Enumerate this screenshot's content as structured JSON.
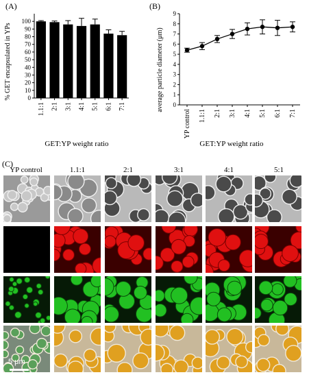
{
  "panels": {
    "a_label": "(A)",
    "b_label": "(B)",
    "c_label": "(C)"
  },
  "chart_data": [
    {
      "type": "bar",
      "ylabel": "% GET encapsulated in YPs",
      "xlabel": "GET:YP weight ratio",
      "categories": [
        "1.1:1",
        "2:1",
        "3:1",
        "4:1",
        "5:1",
        "6:1",
        "7:1"
      ],
      "values": [
        100,
        99,
        96,
        94,
        96,
        84,
        82
      ],
      "errors": [
        1,
        1.5,
        5,
        10,
        7,
        5,
        5
      ],
      "ylim": [
        0,
        110
      ],
      "yticks": [
        0,
        10,
        20,
        30,
        40,
        50,
        60,
        70,
        80,
        90,
        100
      ],
      "color": "#000000"
    },
    {
      "type": "line",
      "ylabel": "average particle diameter (μm)",
      "xlabel": "GET:YP weight ratio",
      "categories": [
        "YP control",
        "1.1:1",
        "2:1",
        "3:1",
        "4:1",
        "5:1",
        "6:1",
        "7:1"
      ],
      "values": [
        5.4,
        5.8,
        6.5,
        7.0,
        7.5,
        7.7,
        7.6,
        7.7
      ],
      "errors": [
        0.2,
        0.35,
        0.35,
        0.45,
        0.6,
        0.7,
        0.75,
        0.5
      ],
      "ylim": [
        0,
        9
      ],
      "yticks": [
        0,
        1,
        2,
        3,
        4,
        5,
        6,
        7,
        8,
        9
      ],
      "color": "#000000"
    }
  ],
  "micrographs": {
    "columns": [
      "YP control",
      "1.1:1",
      "2:1",
      "3:1",
      "4:1",
      "5:1"
    ],
    "scale_bar_label": "5 μm"
  }
}
